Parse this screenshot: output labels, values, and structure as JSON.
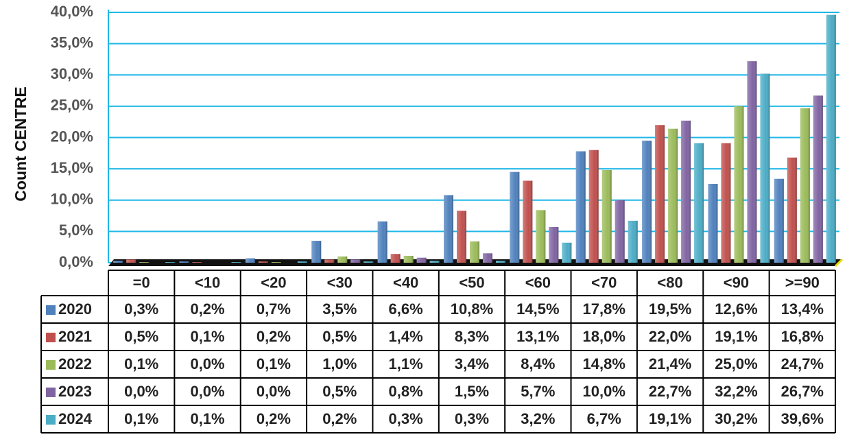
{
  "chart_data": {
    "type": "bar",
    "y_label": "Count CENTRE",
    "categories": [
      "=0",
      "<10",
      "<20",
      "<30",
      "<40",
      "<50",
      "<60",
      "<70",
      "<80",
      "<90",
      ">=90"
    ],
    "series": [
      {
        "name": "2020",
        "color": "#4f81bd",
        "values": [
          0.3,
          0.2,
          0.7,
          3.5,
          6.6,
          10.8,
          14.5,
          17.8,
          19.5,
          12.6,
          13.4
        ],
        "value_labels": [
          "0,3%",
          "0,2%",
          "0,7%",
          "3,5%",
          "6,6%",
          "10,8%",
          "14,5%",
          "17,8%",
          "19,5%",
          "12,6%",
          "13,4%"
        ]
      },
      {
        "name": "2021",
        "color": "#c0504d",
        "values": [
          0.5,
          0.1,
          0.2,
          0.5,
          1.4,
          8.3,
          13.1,
          18.0,
          22.0,
          19.1,
          16.8
        ],
        "value_labels": [
          "0,5%",
          "0,1%",
          "0,2%",
          "0,5%",
          "1,4%",
          "8,3%",
          "13,1%",
          "18,0%",
          "22,0%",
          "19,1%",
          "16,8%"
        ]
      },
      {
        "name": "2022",
        "color": "#9bbb59",
        "values": [
          0.1,
          0.0,
          0.1,
          1.0,
          1.1,
          3.4,
          8.4,
          14.8,
          21.4,
          25.0,
          24.7
        ],
        "value_labels": [
          "0,1%",
          "0,0%",
          "0,1%",
          "1,0%",
          "1,1%",
          "3,4%",
          "8,4%",
          "14,8%",
          "21,4%",
          "25,0%",
          "24,7%"
        ]
      },
      {
        "name": "2023",
        "color": "#8064a2",
        "values": [
          0.0,
          0.0,
          0.0,
          0.5,
          0.8,
          1.5,
          5.7,
          10.0,
          22.7,
          32.2,
          26.7
        ],
        "value_labels": [
          "0,0%",
          "0,0%",
          "0,0%",
          "0,5%",
          "0,8%",
          "1,5%",
          "5,7%",
          "10,0%",
          "22,7%",
          "32,2%",
          "26,7%"
        ]
      },
      {
        "name": "2024",
        "color": "#4bacc6",
        "values": [
          0.1,
          0.1,
          0.2,
          0.2,
          0.3,
          0.3,
          3.2,
          6.7,
          19.1,
          30.2,
          39.6
        ],
        "value_labels": [
          "0,1%",
          "0,1%",
          "0,2%",
          "0,2%",
          "0,3%",
          "0,3%",
          "3,2%",
          "6,7%",
          "19,1%",
          "30,2%",
          "39,6%"
        ]
      }
    ],
    "ylim": [
      0,
      40
    ],
    "yticks": [
      {
        "value": 0,
        "label": "0,0%"
      },
      {
        "value": 5,
        "label": "5,0%"
      },
      {
        "value": 10,
        "label": "10,0%"
      },
      {
        "value": 15,
        "label": "15,0%"
      },
      {
        "value": 20,
        "label": "20,0%"
      },
      {
        "value": 25,
        "label": "25,0%"
      },
      {
        "value": 30,
        "label": "30,0%"
      },
      {
        "value": 35,
        "label": "35,0%"
      },
      {
        "value": 40,
        "label": "40,0%"
      }
    ],
    "grid": true
  }
}
